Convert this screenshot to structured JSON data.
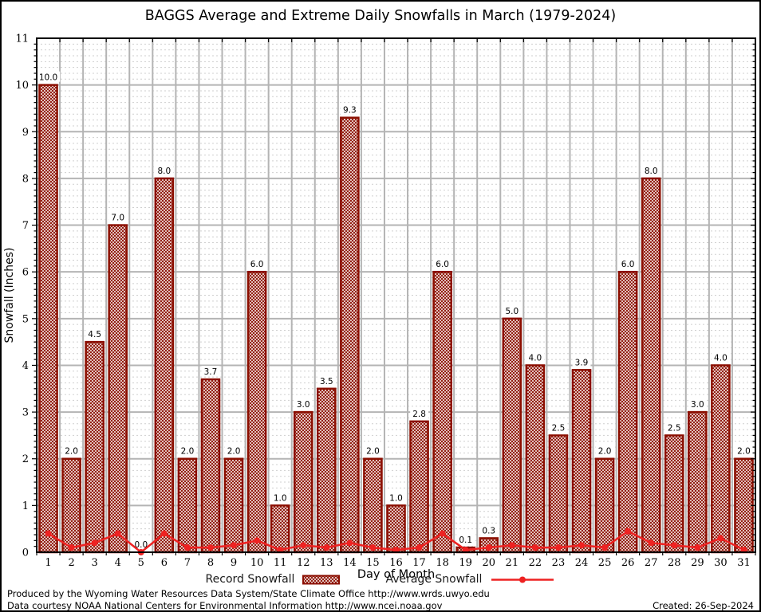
{
  "title": "BAGGS Average and Extreme Daily Snowfalls in March (1979-2024)",
  "colors": {
    "bar": "#8b0e00",
    "line": "#ee2222",
    "grid_major": "#b4b4b4",
    "grid_minor": "#cfcfcf",
    "axis": "#000000",
    "label_text": "#000000"
  },
  "chart_data": {
    "type": "bar",
    "title": "BAGGS Average and Extreme Daily Snowfalls in March (1979-2024)",
    "xlabel": "Day of Month",
    "ylabel": "Snowfall (Inches)",
    "ylim": [
      0,
      11
    ],
    "grid": true,
    "legend_position": "bottom",
    "categories": [
      1,
      2,
      3,
      4,
      5,
      6,
      7,
      8,
      9,
      10,
      11,
      12,
      13,
      14,
      15,
      16,
      17,
      18,
      19,
      20,
      21,
      22,
      23,
      24,
      25,
      26,
      27,
      28,
      29,
      30,
      31
    ],
    "series": [
      {
        "name": "Record Snowfall",
        "type": "bar",
        "values": [
          10.0,
          2.0,
          4.5,
          7.0,
          0.0,
          8.0,
          2.0,
          3.7,
          2.0,
          6.0,
          1.0,
          3.0,
          3.5,
          9.3,
          2.0,
          1.0,
          2.8,
          6.0,
          0.1,
          0.3,
          5.0,
          4.0,
          2.5,
          3.9,
          2.0,
          6.0,
          8.0,
          2.5,
          3.0,
          4.0,
          2.0
        ]
      },
      {
        "name": "Average Snowfall",
        "type": "line",
        "values": [
          0.4,
          0.1,
          0.2,
          0.4,
          0.0,
          0.4,
          0.1,
          0.1,
          0.15,
          0.25,
          0.05,
          0.15,
          0.1,
          0.2,
          0.1,
          0.05,
          0.1,
          0.4,
          0.05,
          0.1,
          0.15,
          0.1,
          0.1,
          0.15,
          0.1,
          0.45,
          0.2,
          0.15,
          0.1,
          0.3,
          0.05
        ]
      }
    ],
    "bar_value_labels": [
      "10.0",
      "2.0",
      "4.5",
      "7.0",
      "0.0",
      "8.0",
      "2.0",
      "3.7",
      "2.0",
      "6.0",
      "1.0",
      "3.0",
      "3.5",
      "9.3",
      "2.0",
      "1.0",
      "2.8",
      "6.0",
      "0.1",
      "0.3",
      "5.0",
      "4.0",
      "2.5",
      "3.9",
      "2.0",
      "6.0",
      "8.0",
      "2.5",
      "3.0",
      "4.0",
      "2.0"
    ],
    "y_ticks": [
      0,
      1,
      2,
      3,
      4,
      5,
      6,
      7,
      8,
      9,
      10,
      11
    ]
  },
  "legend": {
    "record_label": "Record Snowfall",
    "average_label": "Average Snowfall"
  },
  "footer": {
    "line1": "Produced by the Wyoming Water Resources Data System/State Climate Office http://www.wrds.uwyo.edu",
    "line2": "Data courtesy NOAA National Centers for Environmental Information http://www.ncei.noaa.gov",
    "created": "Created: 26-Sep-2024"
  }
}
